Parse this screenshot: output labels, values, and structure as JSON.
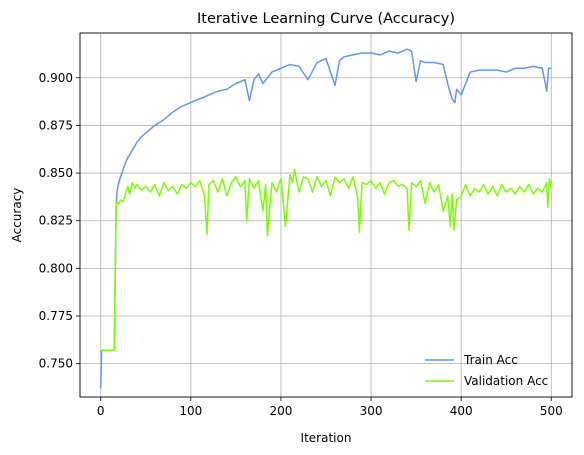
{
  "chart_data": {
    "type": "line",
    "title": "Iterative Learning Curve (Accuracy)",
    "xlabel": "Iteration",
    "ylabel": "Accuracy",
    "xlim": [
      -23,
      523
    ],
    "ylim": [
      0.7325,
      0.9235
    ],
    "x_ticks": [
      0,
      100,
      200,
      300,
      400,
      500
    ],
    "y_ticks": [
      0.75,
      0.775,
      0.8,
      0.825,
      0.85,
      0.875,
      0.9
    ],
    "y_tick_labels": [
      "0.750",
      "0.775",
      "0.800",
      "0.825",
      "0.850",
      "0.875",
      "0.900"
    ],
    "grid": true,
    "legend_position": "lower-right",
    "series": [
      {
        "name": "Train Acc",
        "color": "#6495ED",
        "x": [
          0,
          1,
          5,
          10,
          15,
          17,
          18,
          20,
          22,
          25,
          28,
          30,
          35,
          40,
          45,
          50,
          55,
          60,
          70,
          80,
          90,
          100,
          110,
          120,
          130,
          140,
          150,
          160,
          165,
          170,
          175,
          180,
          190,
          200,
          210,
          220,
          230,
          240,
          250,
          260,
          265,
          270,
          280,
          290,
          300,
          310,
          320,
          330,
          340,
          345,
          350,
          355,
          360,
          370,
          380,
          385,
          388,
          390,
          393,
          395,
          400,
          410,
          420,
          430,
          440,
          450,
          460,
          470,
          480,
          490,
          495,
          497,
          500
        ],
        "y": [
          0.737,
          0.757,
          0.757,
          0.757,
          0.757,
          0.83,
          0.84,
          0.845,
          0.848,
          0.852,
          0.856,
          0.858,
          0.862,
          0.866,
          0.869,
          0.871,
          0.873,
          0.875,
          0.878,
          0.882,
          0.885,
          0.887,
          0.889,
          0.891,
          0.893,
          0.894,
          0.897,
          0.899,
          0.888,
          0.899,
          0.902,
          0.897,
          0.903,
          0.905,
          0.907,
          0.906,
          0.899,
          0.908,
          0.91,
          0.896,
          0.909,
          0.911,
          0.912,
          0.913,
          0.913,
          0.912,
          0.914,
          0.913,
          0.915,
          0.914,
          0.898,
          0.909,
          0.908,
          0.908,
          0.907,
          0.897,
          0.892,
          0.889,
          0.887,
          0.894,
          0.891,
          0.903,
          0.904,
          0.904,
          0.904,
          0.903,
          0.905,
          0.905,
          0.906,
          0.905,
          0.893,
          0.905,
          0.905
        ]
      },
      {
        "name": "Validation Acc",
        "color": "#7CFC00",
        "x": [
          0,
          5,
          10,
          15,
          17,
          18,
          20,
          22,
          25,
          28,
          30,
          32,
          35,
          38,
          40,
          45,
          50,
          55,
          60,
          65,
          70,
          75,
          80,
          85,
          90,
          95,
          100,
          105,
          110,
          115,
          118,
          120,
          125,
          130,
          135,
          140,
          145,
          150,
          155,
          160,
          162,
          165,
          170,
          175,
          180,
          183,
          185,
          190,
          195,
          200,
          205,
          210,
          213,
          215,
          220,
          225,
          230,
          235,
          240,
          245,
          250,
          255,
          260,
          265,
          270,
          275,
          280,
          285,
          287,
          290,
          295,
          300,
          305,
          310,
          315,
          320,
          325,
          330,
          335,
          340,
          342,
          345,
          350,
          355,
          360,
          365,
          370,
          375,
          380,
          385,
          388,
          390,
          392,
          395,
          400,
          405,
          410,
          415,
          420,
          425,
          430,
          435,
          440,
          445,
          450,
          455,
          460,
          465,
          470,
          475,
          480,
          485,
          490,
          495,
          496,
          498,
          500
        ],
        "y": [
          0.757,
          0.757,
          0.757,
          0.757,
          0.83,
          0.835,
          0.834,
          0.836,
          0.835,
          0.84,
          0.843,
          0.839,
          0.845,
          0.842,
          0.844,
          0.841,
          0.843,
          0.84,
          0.844,
          0.838,
          0.845,
          0.841,
          0.843,
          0.839,
          0.844,
          0.842,
          0.845,
          0.843,
          0.846,
          0.838,
          0.818,
          0.844,
          0.846,
          0.84,
          0.847,
          0.838,
          0.845,
          0.848,
          0.843,
          0.846,
          0.825,
          0.847,
          0.842,
          0.846,
          0.83,
          0.844,
          0.817,
          0.845,
          0.84,
          0.847,
          0.822,
          0.849,
          0.845,
          0.852,
          0.84,
          0.848,
          0.847,
          0.84,
          0.848,
          0.843,
          0.846,
          0.838,
          0.848,
          0.845,
          0.847,
          0.842,
          0.848,
          0.838,
          0.819,
          0.845,
          0.844,
          0.846,
          0.842,
          0.845,
          0.839,
          0.845,
          0.846,
          0.843,
          0.844,
          0.842,
          0.82,
          0.845,
          0.843,
          0.846,
          0.834,
          0.845,
          0.84,
          0.844,
          0.83,
          0.838,
          0.822,
          0.839,
          0.82,
          0.836,
          0.838,
          0.844,
          0.838,
          0.842,
          0.84,
          0.844,
          0.839,
          0.843,
          0.838,
          0.844,
          0.84,
          0.842,
          0.839,
          0.843,
          0.84,
          0.844,
          0.839,
          0.842,
          0.84,
          0.845,
          0.832,
          0.847,
          0.842
        ]
      }
    ]
  }
}
